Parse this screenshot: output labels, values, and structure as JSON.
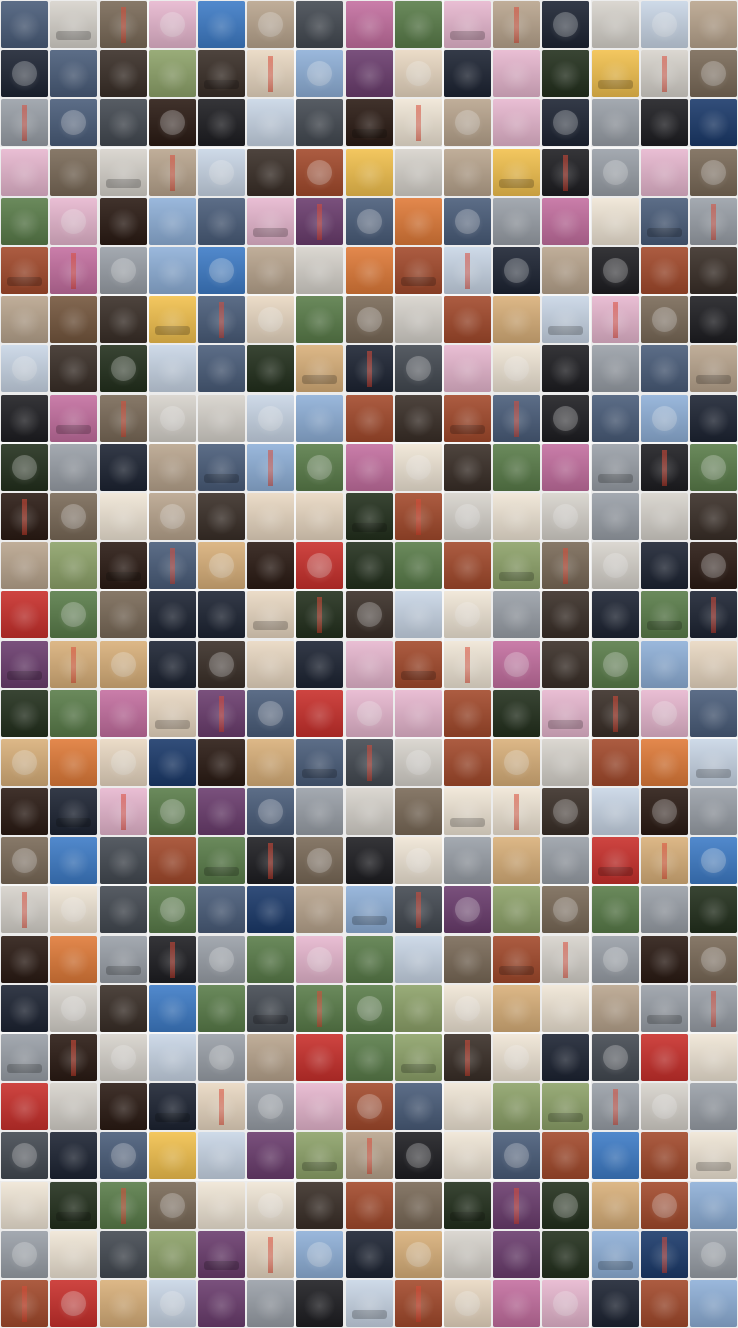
{
  "gallery": {
    "columns": 15,
    "rows": 27,
    "separator_color": "#f7f7f7",
    "palette": [
      "#3a2f28",
      "#7a6a58",
      "#b9a58e",
      "#1d2433",
      "#4a5d7a",
      "#8fb0d8",
      "#c9d6e6",
      "#2b1b14",
      "#a34a2c",
      "#d9b07a",
      "#e9d8c2",
      "#5a7d4a",
      "#8ea36a",
      "#23301d",
      "#6b3d6e",
      "#c46fa0",
      "#e7b7cf",
      "#1e1e22",
      "#444a52",
      "#9aa0a8",
      "#d7d3cc",
      "#f0e6d6",
      "#c9302c",
      "#e07b39",
      "#f2c14e",
      "#3e7cc7",
      "#1b3a6b",
      "#75573e"
    ],
    "tile_colors": [
      [
        5,
        21,
        2,
        17,
        26,
        3,
        19,
        16,
        12,
        17,
        3,
        4,
        21,
        7,
        3
      ],
      [
        4,
        5,
        1,
        13,
        1,
        11,
        6,
        15,
        11,
        4,
        17,
        14,
        25,
        21,
        2
      ],
      [
        20,
        5,
        19,
        8,
        18,
        7,
        19,
        8,
        22,
        3,
        17,
        4,
        20,
        18,
        27
      ],
      [
        17,
        2,
        21,
        3,
        7,
        1,
        9,
        25,
        21,
        3,
        25,
        18,
        20,
        17,
        2
      ],
      [
        12,
        17,
        8,
        6,
        5,
        17,
        15,
        5,
        24,
        5,
        20,
        16,
        22,
        5,
        20
      ],
      [
        9,
        16,
        20,
        6,
        26,
        3,
        21,
        24,
        9,
        7,
        4,
        3,
        18,
        9,
        1
      ],
      [
        3,
        28,
        1,
        25,
        5,
        11,
        12,
        2,
        21,
        9,
        10,
        7,
        17,
        2,
        18
      ],
      [
        7,
        1,
        14,
        7,
        5,
        14,
        10,
        4,
        19,
        17,
        22,
        18,
        20,
        5,
        3
      ],
      [
        18,
        16,
        2,
        21,
        21,
        7,
        6,
        9,
        1,
        9,
        5,
        18,
        5,
        6,
        4
      ],
      [
        14,
        20,
        4,
        3,
        5,
        6,
        12,
        16,
        22,
        1,
        12,
        16,
        20,
        18,
        12
      ],
      [
        8,
        2,
        22,
        3,
        1,
        11,
        11,
        14,
        9,
        21,
        22,
        21,
        20,
        21,
        1
      ],
      [
        3,
        13,
        8,
        5,
        10,
        8,
        23,
        14,
        12,
        9,
        13,
        2,
        21,
        4,
        8
      ],
      [
        23,
        12,
        2,
        4,
        4,
        11,
        14,
        1,
        7,
        22,
        20,
        1,
        4,
        12,
        4
      ],
      [
        15,
        10,
        10,
        4,
        1,
        11,
        4,
        17,
        9,
        22,
        16,
        1,
        12,
        6,
        11
      ],
      [
        14,
        12,
        16,
        11,
        15,
        5,
        23,
        17,
        17,
        9,
        14,
        17,
        1,
        17,
        5
      ],
      [
        10,
        24,
        11,
        27,
        8,
        10,
        5,
        19,
        21,
        9,
        10,
        21,
        9,
        24,
        7
      ],
      [
        8,
        4,
        17,
        12,
        15,
        5,
        20,
        21,
        2,
        22,
        22,
        1,
        7,
        8,
        20
      ],
      [
        2,
        26,
        19,
        9,
        12,
        18,
        2,
        18,
        22,
        20,
        10,
        20,
        23,
        10,
        26
      ],
      [
        21,
        22,
        19,
        12,
        5,
        27,
        3,
        6,
        19,
        15,
        13,
        2,
        12,
        20,
        14
      ],
      [
        8,
        24,
        20,
        18,
        20,
        12,
        17,
        12,
        7,
        2,
        9,
        21,
        20,
        8,
        2
      ],
      [
        4,
        21,
        1,
        26,
        12,
        19,
        12,
        12,
        13,
        22,
        10,
        22,
        3,
        20,
        20
      ],
      [
        20,
        8,
        21,
        7,
        20,
        3,
        23,
        12,
        13,
        1,
        22,
        4,
        19,
        23,
        22
      ],
      [
        23,
        21,
        8,
        4,
        11,
        20,
        17,
        9,
        5,
        22,
        13,
        13,
        20,
        21,
        20
      ],
      [
        19,
        4,
        5,
        25,
        7,
        15,
        13,
        3,
        18,
        22,
        5,
        9,
        26,
        9,
        22
      ],
      [
        22,
        14,
        12,
        2,
        22,
        22,
        1,
        9,
        2,
        14,
        15,
        14,
        10,
        9,
        6
      ],
      [
        20,
        22,
        19,
        13,
        15,
        11,
        6,
        4,
        10,
        21,
        15,
        14,
        6,
        27,
        20
      ],
      [
        9,
        23,
        10,
        7,
        15,
        20,
        18,
        7,
        9,
        11,
        16,
        17,
        4,
        9,
        6
      ]
    ]
  }
}
